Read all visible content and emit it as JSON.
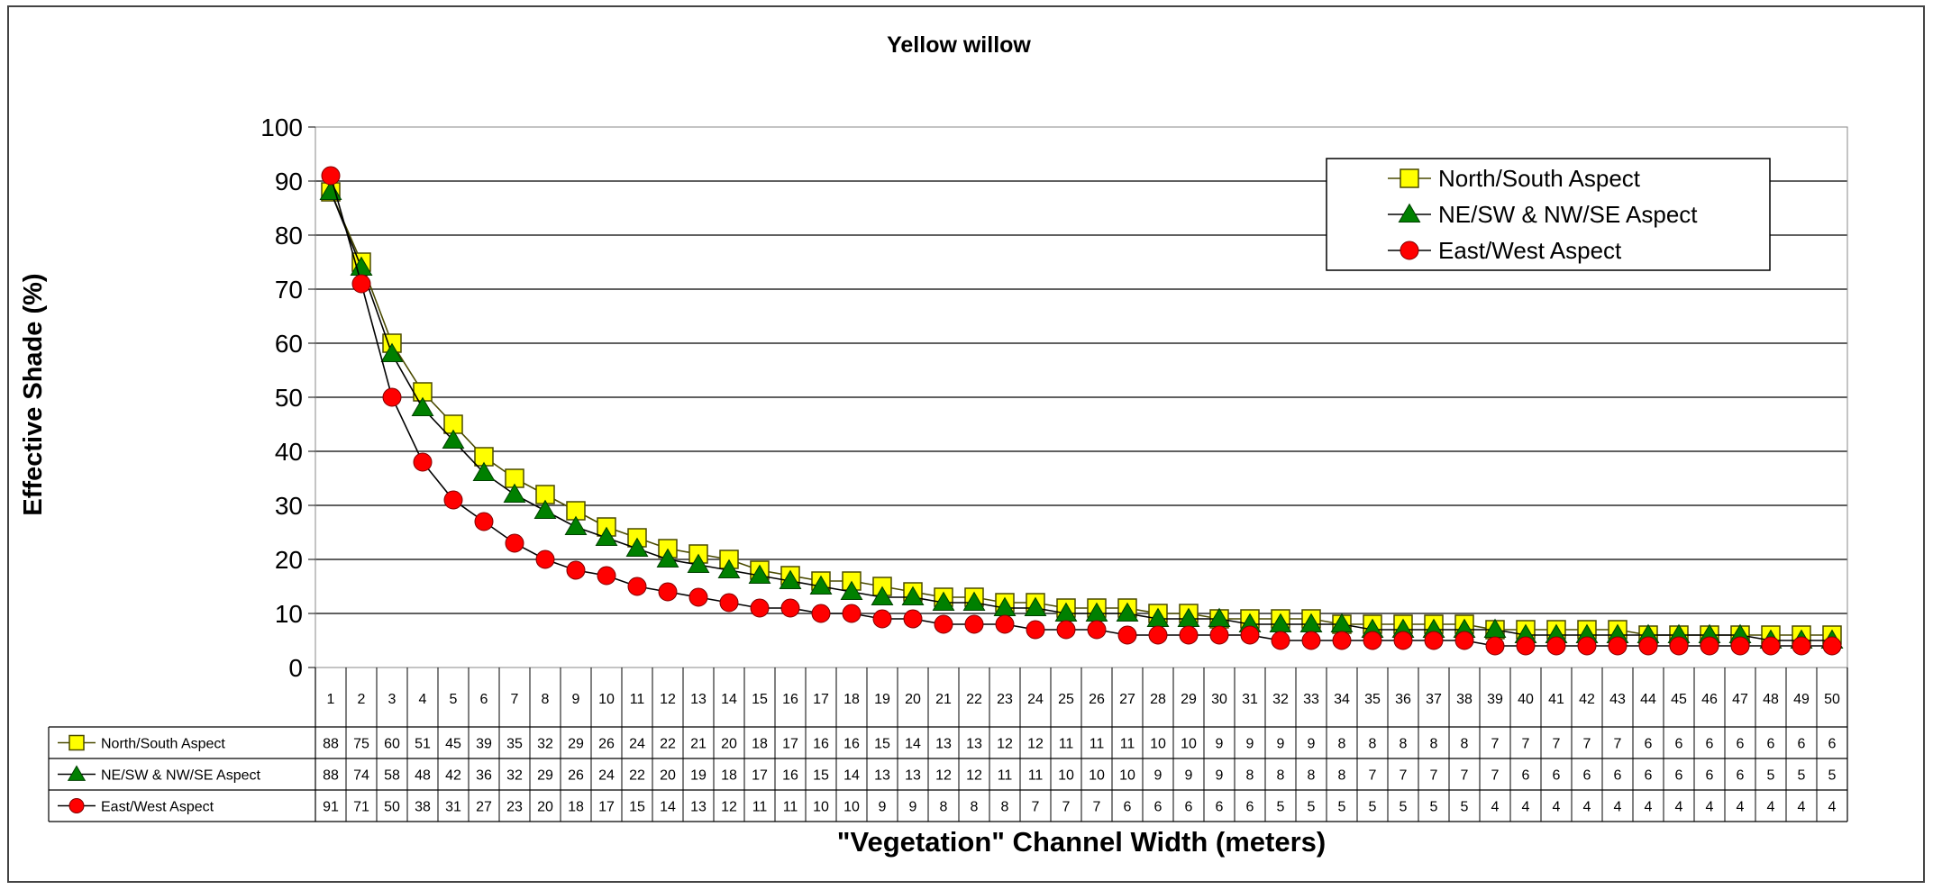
{
  "chart_data": {
    "type": "line",
    "title": "Yellow willow",
    "xlabel": "\"Vegetation\" Channel Width (meters)",
    "ylabel": "Effective Shade (%)",
    "ylim": [
      0,
      100
    ],
    "y_ticks": [
      "0",
      "10",
      "20",
      "30",
      "40",
      "50",
      "60",
      "70",
      "80",
      "90",
      "100"
    ],
    "grid": "horizontal",
    "legend_position": "top-right",
    "data_table": true,
    "x": [
      1,
      2,
      3,
      4,
      5,
      6,
      7,
      8,
      9,
      10,
      11,
      12,
      13,
      14,
      15,
      16,
      17,
      18,
      19,
      20,
      21,
      22,
      23,
      24,
      25,
      26,
      27,
      28,
      29,
      30,
      31,
      32,
      33,
      34,
      35,
      36,
      37,
      38,
      39,
      40,
      41,
      42,
      43,
      44,
      45,
      46,
      47,
      48,
      49,
      50
    ],
    "series": [
      {
        "name": "North/South Aspect",
        "marker": "square",
        "color": "#ffff00",
        "line_color": "#4a4a00",
        "values": [
          88,
          75,
          60,
          51,
          45,
          39,
          35,
          32,
          29,
          26,
          24,
          22,
          21,
          20,
          18,
          17,
          16,
          16,
          15,
          14,
          13,
          13,
          12,
          12,
          11,
          11,
          11,
          10,
          10,
          9,
          9,
          9,
          9,
          8,
          8,
          8,
          8,
          8,
          7,
          7,
          7,
          7,
          7,
          6,
          6,
          6,
          6,
          6,
          6,
          6
        ]
      },
      {
        "name": "NE/SW & NW/SE Aspect",
        "marker": "triangle",
        "color": "#008000",
        "line_color": "#000000",
        "values": [
          88,
          74,
          58,
          48,
          42,
          36,
          32,
          29,
          26,
          24,
          22,
          20,
          19,
          18,
          17,
          16,
          15,
          14,
          13,
          13,
          12,
          12,
          11,
          11,
          10,
          10,
          10,
          9,
          9,
          9,
          8,
          8,
          8,
          8,
          7,
          7,
          7,
          7,
          7,
          6,
          6,
          6,
          6,
          6,
          6,
          6,
          6,
          5,
          5,
          5
        ]
      },
      {
        "name": "East/West Aspect",
        "marker": "circle",
        "color": "#ff0000",
        "line_color": "#000000",
        "values": [
          91,
          71,
          50,
          38,
          31,
          27,
          23,
          20,
          18,
          17,
          15,
          14,
          13,
          12,
          11,
          11,
          10,
          10,
          9,
          9,
          8,
          8,
          8,
          7,
          7,
          7,
          6,
          6,
          6,
          6,
          6,
          5,
          5,
          5,
          5,
          5,
          5,
          5,
          4,
          4,
          4,
          4,
          4,
          4,
          4,
          4,
          4,
          4,
          4,
          4
        ]
      }
    ]
  }
}
